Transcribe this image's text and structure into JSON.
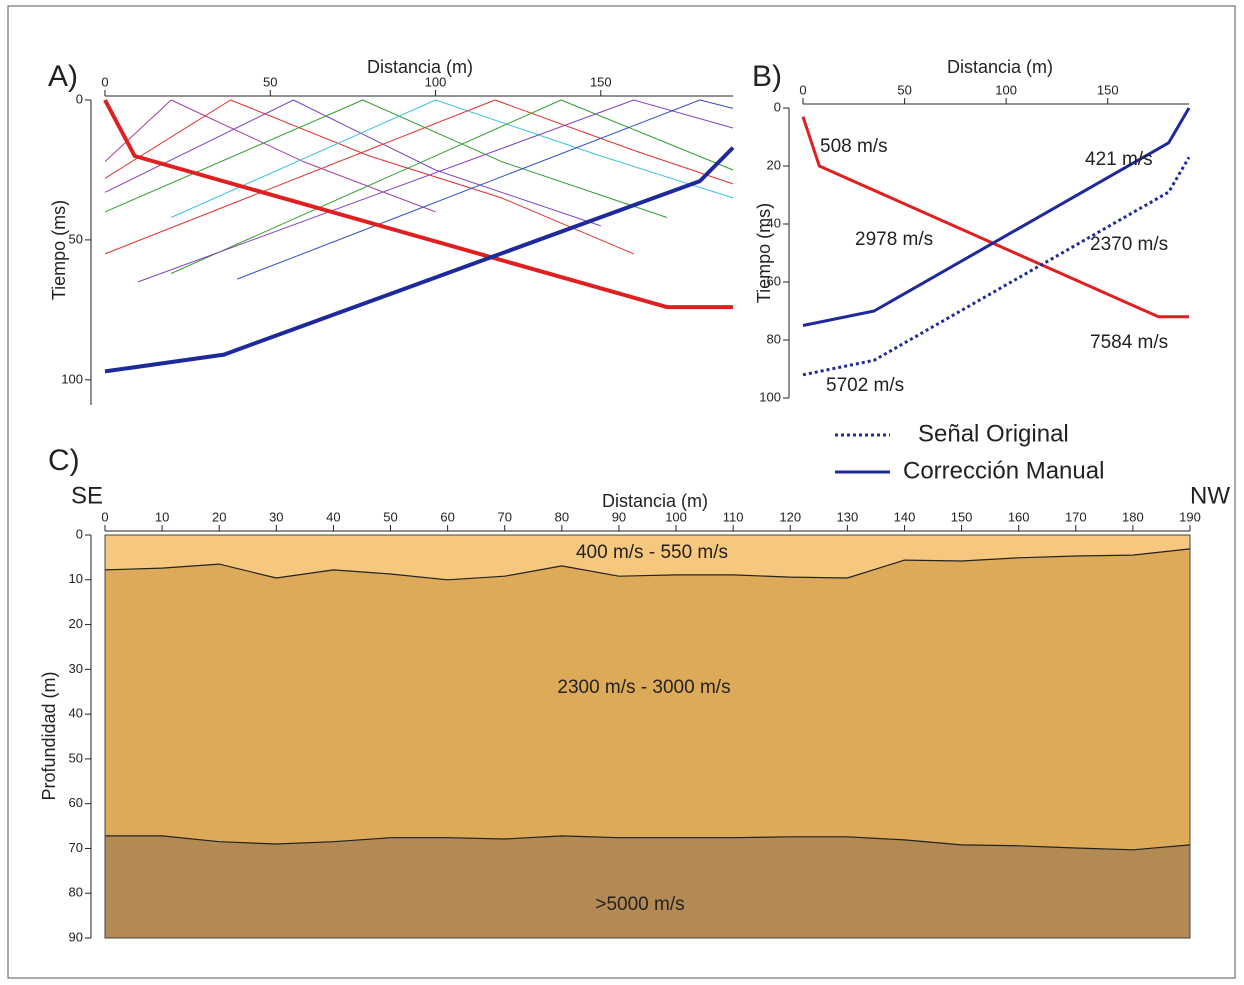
{
  "chart_data": [
    {
      "type": "line",
      "label": "A)",
      "x_title": "Distancia (m)",
      "y_title": "Tiempo (ms)",
      "xlim": [
        0,
        190
      ],
      "ylim": [
        0,
        109
      ],
      "xticks": [
        0,
        50,
        100,
        150
      ],
      "yticks": [
        0,
        50,
        100
      ],
      "series": [
        {
          "color": "#a040a0",
          "width": 1,
          "x": [
            0,
            20,
            60,
            100
          ],
          "values": [
            22,
            0,
            22,
            40
          ]
        },
        {
          "color": "#e03030",
          "width": 1,
          "x": [
            0,
            38,
            80,
            120,
            160
          ],
          "values": [
            28,
            0,
            20,
            35,
            55
          ]
        },
        {
          "color": "#8040c0",
          "width": 1,
          "x": [
            0,
            57,
            100,
            150
          ],
          "values": [
            33,
            0,
            25,
            45
          ]
        },
        {
          "color": "#30a030",
          "width": 1,
          "x": [
            0,
            78,
            120,
            170
          ],
          "values": [
            40,
            0,
            22,
            42
          ]
        },
        {
          "color": "#40c0e0",
          "width": 1,
          "x": [
            20,
            100,
            150,
            190
          ],
          "values": [
            42,
            0,
            20,
            35
          ]
        },
        {
          "color": "#e03030",
          "width": 1,
          "x": [
            0,
            118,
            160,
            190
          ],
          "values": [
            55,
            0,
            18,
            30
          ]
        },
        {
          "color": "#30a030",
          "width": 1,
          "x": [
            20,
            138,
            190
          ],
          "values": [
            62,
            0,
            25
          ]
        },
        {
          "color": "#8040c0",
          "width": 1,
          "x": [
            10,
            160,
            190
          ],
          "values": [
            65,
            0,
            10
          ]
        },
        {
          "color": "#3050c0",
          "width": 1,
          "x": [
            40,
            180,
            190
          ],
          "values": [
            64,
            0,
            3
          ]
        },
        {
          "color": "#e02020",
          "width": 4,
          "x": [
            0,
            9,
            170,
            190
          ],
          "values": [
            0,
            20,
            74,
            74
          ]
        },
        {
          "color": "#1e2a9a",
          "width": 4,
          "x": [
            0,
            36,
            180,
            190
          ],
          "values": [
            97,
            91,
            29,
            17
          ]
        }
      ]
    },
    {
      "type": "line",
      "label": "B)",
      "x_title": "Distancia (m)",
      "y_title": "Tiempo (ms)",
      "xlim": [
        0,
        190
      ],
      "ylim": [
        0,
        100
      ],
      "xticks": [
        0,
        50,
        100,
        150
      ],
      "yticks": [
        0,
        20,
        40,
        60,
        80,
        100
      ],
      "series": [
        {
          "color": "#e02020",
          "width": 3,
          "x": [
            0,
            8,
            175,
            190
          ],
          "values": [
            3,
            20,
            72,
            72
          ]
        },
        {
          "name": "Corrección Manual",
          "color": "#1e2a9a",
          "width": 3,
          "x": [
            0,
            35,
            180,
            190
          ],
          "values": [
            75,
            70,
            12,
            0
          ]
        },
        {
          "name": "Señal Original",
          "color": "#1e2a9a",
          "width": 3,
          "dash": "dotted",
          "x": [
            0,
            35,
            180,
            190
          ],
          "values": [
            92,
            87,
            29,
            17
          ]
        }
      ],
      "legend": "below",
      "annotations": [
        "508 m/s",
        "2978 m/s",
        "421 m/s",
        "2370 m/s",
        "7584 m/s",
        "5702 m/s"
      ]
    },
    {
      "type": "area",
      "label": "C)",
      "x_title": "Distancia (m)",
      "y_title": "Profundidad (m)",
      "left_label": "SE",
      "right_label": "NW",
      "xlim": [
        0,
        190
      ],
      "ylim": [
        0,
        90
      ],
      "xticks": [
        0,
        10,
        20,
        30,
        40,
        50,
        60,
        70,
        80,
        90,
        100,
        110,
        120,
        130,
        140,
        150,
        160,
        170,
        180,
        190
      ],
      "yticks": [
        0,
        10,
        20,
        30,
        40,
        50,
        60,
        70,
        80,
        90
      ],
      "x": [
        0,
        10,
        20,
        30,
        40,
        50,
        60,
        70,
        80,
        90,
        100,
        110,
        120,
        130,
        140,
        150,
        160,
        170,
        180,
        190
      ],
      "boundaries": [
        {
          "values": [
            7.8,
            7.4,
            6.5,
            9.6,
            7.8,
            8.7,
            10,
            9.2,
            6.9,
            9.2,
            8.9,
            8.9,
            9.4,
            9.6,
            5.6,
            5.8,
            5.1,
            4.7,
            4.5,
            3.1
          ]
        },
        {
          "values": [
            67.2,
            67.2,
            68.5,
            69,
            68.5,
            67.6,
            67.6,
            67.9,
            67.2,
            67.6,
            67.6,
            67.6,
            67.4,
            67.4,
            68.1,
            69.2,
            69.4,
            69.9,
            70.3,
            69.2
          ]
        }
      ],
      "layer_colors": [
        "#f6c77e",
        "#ddaa5a",
        "#b38a53"
      ],
      "layer_labels": [
        "400 m/s  -  550 m/s",
        "2300 m/s  -  3000 m/s",
        ">5000 m/s"
      ]
    }
  ]
}
